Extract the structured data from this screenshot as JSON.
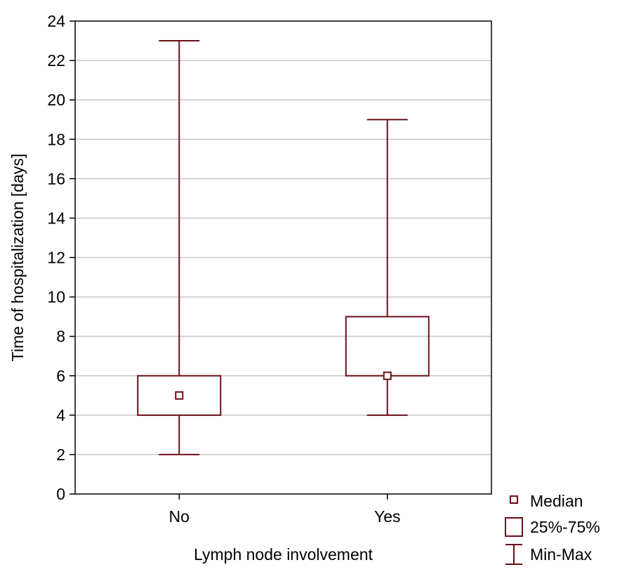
{
  "chart_data": {
    "type": "boxplot",
    "xlabel": "Lymph node involvement",
    "ylabel": "Time of hospitalization [days]",
    "ylim": [
      0,
      24
    ],
    "yticks": [
      0,
      2,
      4,
      6,
      8,
      10,
      12,
      14,
      16,
      18,
      20,
      22,
      24
    ],
    "grid": true,
    "legend_position": "bottom-right, outside plot",
    "color": "#6b0f14",
    "categories": [
      "No",
      "Yes"
    ],
    "groups": [
      {
        "category": "No",
        "min": 2,
        "q1": 4,
        "median": 5,
        "q3": 6,
        "max": 23
      },
      {
        "category": "Yes",
        "min": 4,
        "q1": 6,
        "median": 6,
        "q3": 9,
        "max": 19
      }
    ],
    "legend": [
      {
        "symbol": "median-marker",
        "label": "Median"
      },
      {
        "symbol": "box",
        "label": "25%-75%"
      },
      {
        "symbol": "whisker",
        "label": "Min-Max"
      }
    ]
  }
}
